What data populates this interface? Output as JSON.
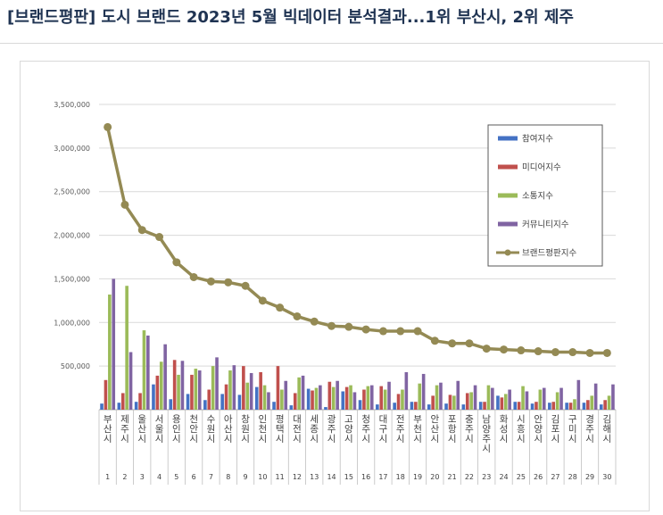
{
  "headline": "[브랜드평판] 도시 브랜드 2023년 5월 빅데이터 분석결과...1위 부산시, 2위 제주",
  "chart_data": {
    "type": "bar",
    "ylim": [
      0,
      3500000
    ],
    "yticks": [
      0,
      500000,
      1000000,
      1500000,
      2000000,
      2500000,
      3000000,
      3500000
    ],
    "ytick_labels": [
      "",
      "500,000",
      "1,000,000",
      "1,500,000",
      "2,000,000",
      "2,500,000",
      "3,000,000",
      "3,500,000"
    ],
    "grid": true,
    "legend_position": "top-right",
    "categories": [
      "부산시",
      "제주시",
      "울산시",
      "서울시",
      "용인시",
      "천안시",
      "수원시",
      "아산시",
      "창원시",
      "인천시",
      "평택시",
      "대전시",
      "세종시",
      "광주시",
      "고양시",
      "청주시",
      "대구시",
      "전주시",
      "부천시",
      "안산시",
      "포항시",
      "충주시",
      "남양주시",
      "화성시",
      "시흥시",
      "안양시",
      "김포시",
      "구미시",
      "경주시",
      "김해시"
    ],
    "ranks": [
      "1",
      "2",
      "3",
      "4",
      "5",
      "6",
      "7",
      "8",
      "9",
      "10",
      "11",
      "12",
      "13",
      "14",
      "15",
      "16",
      "17",
      "18",
      "19",
      "20",
      "21",
      "22",
      "23",
      "24",
      "25",
      "26",
      "27",
      "28",
      "29",
      "30"
    ],
    "series": [
      {
        "name": "참여지수",
        "type": "bar",
        "color": "#4472c4",
        "values": [
          70000,
          80000,
          90000,
          290000,
          120000,
          180000,
          110000,
          180000,
          170000,
          260000,
          90000,
          50000,
          240000,
          30000,
          210000,
          110000,
          60000,
          80000,
          90000,
          60000,
          70000,
          60000,
          90000,
          160000,
          90000,
          70000,
          80000,
          80000,
          80000,
          60000
        ]
      },
      {
        "name": "미디어지수",
        "type": "bar",
        "color": "#c0504d",
        "values": [
          340000,
          190000,
          190000,
          390000,
          570000,
          400000,
          230000,
          290000,
          500000,
          430000,
          500000,
          190000,
          220000,
          320000,
          260000,
          230000,
          270000,
          180000,
          90000,
          160000,
          170000,
          190000,
          90000,
          140000,
          90000,
          90000,
          90000,
          80000,
          110000,
          110000
        ]
      },
      {
        "name": "소통지수",
        "type": "bar",
        "color": "#9bbb59",
        "values": [
          1320000,
          1420000,
          910000,
          550000,
          400000,
          470000,
          500000,
          450000,
          310000,
          280000,
          230000,
          370000,
          250000,
          260000,
          280000,
          270000,
          230000,
          230000,
          300000,
          280000,
          160000,
          200000,
          280000,
          180000,
          270000,
          230000,
          200000,
          120000,
          160000,
          160000
        ]
      },
      {
        "name": "커뮤니티지수",
        "type": "bar",
        "color": "#8064a2",
        "values": [
          1500000,
          660000,
          850000,
          750000,
          560000,
          450000,
          600000,
          510000,
          420000,
          200000,
          330000,
          390000,
          280000,
          330000,
          200000,
          280000,
          320000,
          430000,
          410000,
          310000,
          330000,
          280000,
          250000,
          230000,
          210000,
          250000,
          250000,
          340000,
          300000,
          290000
        ]
      },
      {
        "name": "브랜드평판지수",
        "type": "line",
        "color": "#948a54",
        "values": [
          3240000,
          2350000,
          2060000,
          1980000,
          1690000,
          1520000,
          1470000,
          1460000,
          1420000,
          1250000,
          1170000,
          1070000,
          1010000,
          960000,
          950000,
          920000,
          900000,
          900000,
          900000,
          790000,
          760000,
          760000,
          700000,
          690000,
          680000,
          670000,
          660000,
          660000,
          650000,
          650000
        ]
      }
    ]
  }
}
